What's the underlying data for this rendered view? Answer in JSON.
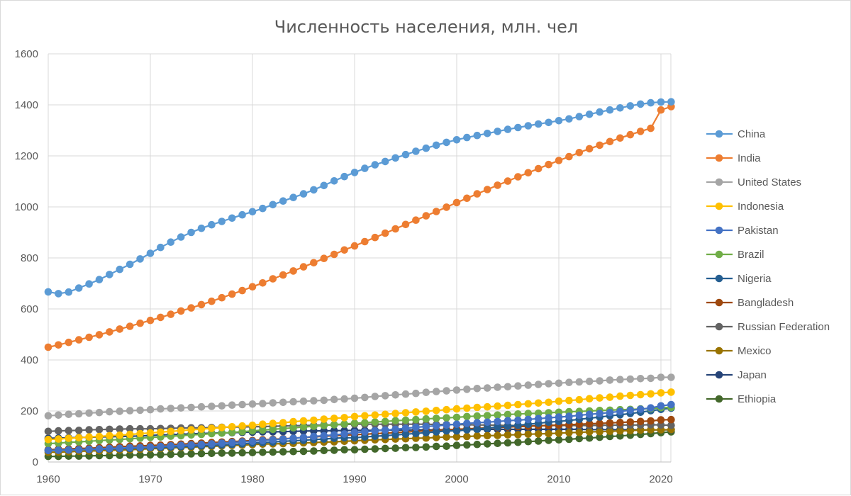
{
  "chart_data": {
    "type": "line",
    "title": "Численность населения, млн. чел",
    "xlabel": "",
    "ylabel": "",
    "xlim": [
      1960,
      2021
    ],
    "ylim": [
      0,
      1600
    ],
    "x_ticks": [
      "1960",
      "1970",
      "1980",
      "1990",
      "2000",
      "2010",
      "2020"
    ],
    "y_ticks": [
      "0",
      "200",
      "400",
      "600",
      "800",
      "1000",
      "1200",
      "1400",
      "1600"
    ],
    "grid": true,
    "legend_position": "right",
    "series": [
      {
        "name": "China",
        "color": "#5b9bd5",
        "values": [
          667,
          660,
          666,
          682,
          698,
          715,
          735,
          755,
          775,
          796,
          818,
          841,
          862,
          882,
          900,
          916,
          930,
          943,
          956,
          969,
          981,
          994,
          1009,
          1023,
          1037,
          1051,
          1067,
          1084,
          1102,
          1119,
          1135,
          1151,
          1165,
          1178,
          1192,
          1205,
          1218,
          1230,
          1242,
          1253,
          1263,
          1272,
          1280,
          1288,
          1296,
          1304,
          1311,
          1318,
          1325,
          1331,
          1338,
          1345,
          1354,
          1363,
          1372,
          1380,
          1388,
          1396,
          1403,
          1408,
          1411,
          1412
        ]
      },
      {
        "name": "India",
        "color": "#ed7d31",
        "values": [
          450,
          459,
          469,
          479,
          489,
          499,
          510,
          521,
          532,
          544,
          555,
          567,
          579,
          592,
          604,
          617,
          630,
          644,
          658,
          672,
          687,
          702,
          718,
          733,
          749,
          765,
          781,
          798,
          814,
          831,
          847,
          864,
          880,
          897,
          914,
          931,
          948,
          965,
          982,
          999,
          1017,
          1034,
          1051,
          1068,
          1085,
          1101,
          1118,
          1134,
          1150,
          1166,
          1182,
          1197,
          1213,
          1228,
          1242,
          1256,
          1270,
          1283,
          1296,
          1308,
          1380,
          1393
        ]
      },
      {
        "name": "United States",
        "color": "#a5a5a5",
        "values": [
          181,
          184,
          187,
          189,
          192,
          194,
          197,
          199,
          201,
          203,
          205,
          208,
          210,
          212,
          214,
          216,
          218,
          220,
          223,
          225,
          227,
          229,
          232,
          234,
          236,
          238,
          240,
          242,
          245,
          247,
          250,
          253,
          257,
          260,
          263,
          266,
          269,
          273,
          276,
          279,
          282,
          285,
          288,
          290,
          293,
          295,
          298,
          301,
          304,
          307,
          309,
          312,
          314,
          316,
          318,
          321,
          323,
          325,
          327,
          328,
          332,
          332
        ]
      },
      {
        "name": "Indonesia",
        "color": "#ffc000",
        "values": [
          88,
          90,
          93,
          95,
          98,
          100,
          103,
          105,
          108,
          111,
          114,
          117,
          120,
          123,
          126,
          129,
          132,
          135,
          138,
          141,
          144,
          148,
          151,
          154,
          158,
          161,
          164,
          168,
          171,
          174,
          178,
          181,
          184,
          187,
          190,
          193,
          196,
          199,
          202,
          205,
          208,
          211,
          214,
          216,
          219,
          222,
          225,
          228,
          231,
          234,
          238,
          241,
          244,
          248,
          251,
          254,
          258,
          261,
          264,
          267,
          271,
          274
        ]
      },
      {
        "name": "Pakistan",
        "color": "#4472c4",
        "values": [
          45,
          46,
          47,
          48,
          50,
          51,
          53,
          54,
          56,
          57,
          59,
          61,
          63,
          65,
          67,
          69,
          71,
          74,
          76,
          79,
          81,
          84,
          87,
          90,
          93,
          96,
          100,
          103,
          106,
          110,
          115,
          118,
          122,
          125,
          128,
          132,
          136,
          139,
          142,
          145,
          148,
          151,
          154,
          156,
          159,
          162,
          164,
          167,
          170,
          173,
          176,
          179,
          183,
          187,
          190,
          194,
          198,
          203,
          207,
          212,
          220,
          225
        ]
      },
      {
        "name": "Brazil",
        "color": "#70ad47",
        "values": [
          72,
          74,
          77,
          79,
          81,
          84,
          86,
          88,
          91,
          93,
          96,
          98,
          101,
          103,
          106,
          108,
          111,
          113,
          116,
          119,
          122,
          125,
          128,
          131,
          134,
          137,
          140,
          143,
          146,
          149,
          152,
          154,
          157,
          159,
          162,
          164,
          166,
          169,
          171,
          173,
          175,
          178,
          180,
          182,
          184,
          186,
          188,
          190,
          191,
          193,
          195,
          197,
          198,
          200,
          202,
          203,
          205,
          206,
          208,
          209,
          213,
          214
        ]
      },
      {
        "name": "Nigeria",
        "color": "#255e91",
        "values": [
          45,
          46,
          47,
          48,
          49,
          50,
          51,
          52,
          53,
          55,
          56,
          57,
          59,
          60,
          62,
          63,
          65,
          67,
          69,
          71,
          74,
          76,
          78,
          81,
          83,
          85,
          88,
          90,
          93,
          95,
          95,
          98,
          101,
          103,
          106,
          109,
          112,
          115,
          118,
          122,
          122,
          126,
          129,
          133,
          137,
          140,
          144,
          148,
          152,
          156,
          159,
          163,
          167,
          172,
          176,
          181,
          185,
          190,
          195,
          201,
          206,
          211
        ]
      },
      {
        "name": "Bangladesh",
        "color": "#9e480e",
        "values": [
          48,
          50,
          51,
          53,
          54,
          56,
          58,
          60,
          62,
          63,
          65,
          66,
          68,
          70,
          72,
          74,
          76,
          78,
          80,
          82,
          84,
          87,
          89,
          91,
          93,
          96,
          98,
          101,
          103,
          105,
          107,
          109,
          111,
          113,
          115,
          117,
          120,
          122,
          124,
          126,
          128,
          130,
          132,
          134,
          135,
          137,
          139,
          140,
          142,
          143,
          145,
          146,
          148,
          150,
          151,
          153,
          155,
          157,
          159,
          161,
          165,
          166
        ]
      },
      {
        "name": "Russian Federation",
        "color": "#636363",
        "values": [
          120,
          122,
          123,
          124,
          126,
          127,
          128,
          129,
          130,
          130,
          130,
          131,
          132,
          133,
          134,
          134,
          135,
          136,
          137,
          137,
          138,
          139,
          140,
          141,
          142,
          143,
          144,
          145,
          146,
          147,
          148,
          148,
          148,
          148,
          148,
          148,
          148,
          148,
          147,
          147,
          147,
          146,
          145,
          145,
          144,
          143,
          143,
          142,
          142,
          143,
          143,
          143,
          143,
          143,
          144,
          144,
          145,
          145,
          145,
          146,
          145,
          144
        ]
      },
      {
        "name": "Mexico",
        "color": "#997300",
        "values": [
          38,
          39,
          40,
          42,
          43,
          44,
          46,
          47,
          48,
          50,
          52,
          53,
          55,
          57,
          58,
          60,
          61,
          63,
          65,
          66,
          68,
          70,
          71,
          72,
          73,
          75,
          76,
          78,
          79,
          81,
          83,
          85,
          87,
          88,
          90,
          91,
          93,
          94,
          96,
          98,
          99,
          100,
          102,
          103,
          104,
          106,
          107,
          109,
          110,
          111,
          113,
          115,
          116,
          118,
          119,
          120,
          122,
          123,
          125,
          126,
          126,
          127
        ]
      },
      {
        "name": "Japan",
        "color": "#264478",
        "values": [
          93,
          94,
          95,
          96,
          97,
          98,
          99,
          100,
          101,
          102,
          104,
          106,
          107,
          109,
          110,
          112,
          113,
          114,
          115,
          116,
          117,
          118,
          118,
          119,
          120,
          121,
          122,
          122,
          123,
          123,
          124,
          124,
          124,
          125,
          125,
          125,
          126,
          126,
          126,
          127,
          127,
          127,
          127,
          128,
          128,
          128,
          128,
          128,
          128,
          128,
          128,
          128,
          128,
          127,
          127,
          127,
          127,
          127,
          126,
          126,
          126,
          126
        ]
      },
      {
        "name": "Ethiopia",
        "color": "#43682b",
        "values": [
          22,
          22,
          23,
          23,
          24,
          25,
          25,
          26,
          27,
          27,
          28,
          29,
          30,
          31,
          32,
          33,
          34,
          35,
          35,
          36,
          37,
          38,
          39,
          40,
          41,
          42,
          43,
          45,
          46,
          48,
          48,
          50,
          51,
          53,
          54,
          56,
          57,
          59,
          61,
          62,
          65,
          67,
          69,
          71,
          73,
          75,
          77,
          80,
          82,
          85,
          87,
          89,
          92,
          94,
          97,
          100,
          102,
          105,
          108,
          111,
          115,
          118
        ]
      }
    ]
  }
}
